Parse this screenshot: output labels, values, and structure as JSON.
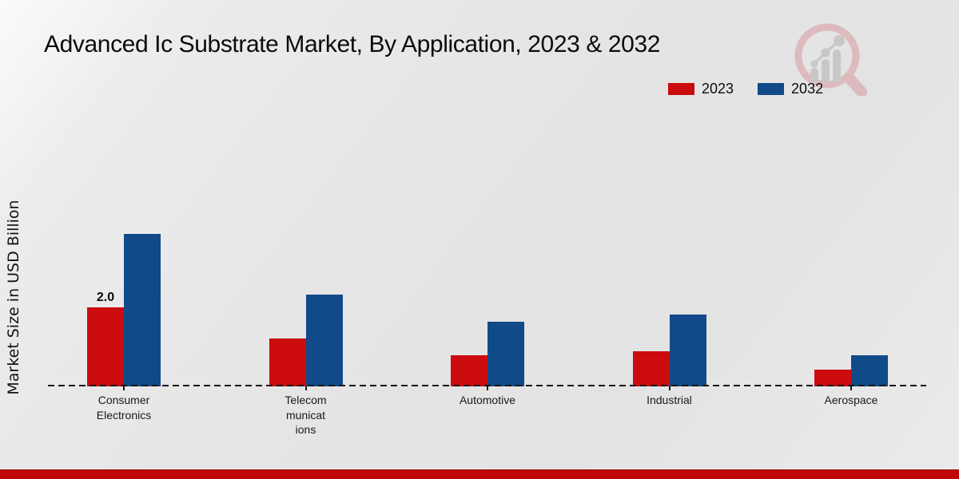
{
  "title": "Advanced Ic Substrate Market, By Application, 2023 & 2032",
  "y_axis_label": "Market Size in USD Billion",
  "legend": {
    "items": [
      {
        "label": "2023",
        "color": "#cb0b0e"
      },
      {
        "label": "2032",
        "color": "#114a89"
      }
    ]
  },
  "watermark_icon": "magnifier-growth-chart-logo",
  "footer": {
    "bar_color": "#c00505"
  },
  "chart_data": {
    "type": "bar",
    "title": "Advanced Ic Substrate Market, By Application, 2023 & 2032",
    "ylabel": "Market Size in USD Billion",
    "xlabel": "",
    "categories": [
      "Consumer Electronics",
      "Telecommunications",
      "Automotive",
      "Industrial",
      "Aerospace"
    ],
    "category_display": [
      "Consumer\nElectronics",
      "Telecom\nmunicat\nions",
      "Automotive",
      "Industrial",
      "Aerospace"
    ],
    "series": [
      {
        "name": "2023",
        "color": "#cb0b0e",
        "values": [
          2.0,
          1.2,
          0.78,
          0.88,
          0.42
        ]
      },
      {
        "name": "2032",
        "color": "#114a89",
        "values": [
          3.85,
          2.32,
          1.62,
          1.81,
          0.79
        ]
      }
    ],
    "bar_labels": [
      {
        "series_index": 0,
        "category_index": 0,
        "text": "2.0"
      }
    ],
    "ylim": [
      0,
      4.5
    ],
    "grid": false,
    "axis_line_style": "dashed",
    "legend_position": "top-right",
    "y_axis_ticks_visible": false
  }
}
